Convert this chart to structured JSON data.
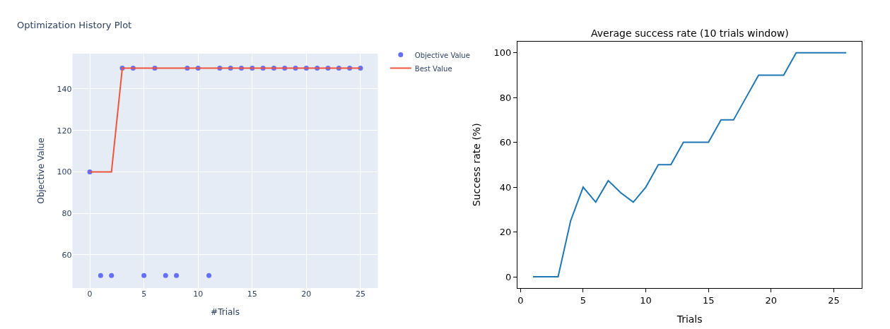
{
  "chart_data": [
    {
      "type": "scatter",
      "title": "Optimization History Plot",
      "xlabel": "#Trials",
      "ylabel": "Objective Value",
      "x": [
        0,
        1,
        2,
        3,
        4,
        5,
        6,
        7,
        8,
        9,
        10,
        11,
        12,
        13,
        14,
        15,
        16,
        17,
        18,
        19,
        20,
        21,
        22,
        23,
        24,
        25
      ],
      "series": [
        {
          "name": "Objective Value",
          "type": "scatter",
          "marker": "circle",
          "color": "#636efa",
          "values": [
            100,
            50,
            50,
            150,
            150,
            50,
            150,
            50,
            50,
            150,
            150,
            50,
            150,
            150,
            150,
            150,
            150,
            150,
            150,
            150,
            150,
            150,
            150,
            150,
            150,
            150
          ]
        },
        {
          "name": "Best Value",
          "type": "line",
          "marker": "none",
          "color": "#ef553b",
          "values": [
            100,
            100,
            100,
            150,
            150,
            150,
            150,
            150,
            150,
            150,
            150,
            150,
            150,
            150,
            150,
            150,
            150,
            150,
            150,
            150,
            150,
            150,
            150,
            150,
            150,
            150
          ]
        }
      ],
      "xlim": [
        -1.6,
        26.6
      ],
      "ylim": [
        44,
        157
      ],
      "xticks": [
        0,
        5,
        10,
        15,
        20,
        25
      ],
      "yticks": [
        60,
        80,
        100,
        120,
        140
      ],
      "grid": true,
      "legend": "right"
    },
    {
      "type": "line",
      "title": "Average success rate (10 trials window)",
      "xlabel": "Trials",
      "ylabel": "Success rate (%)",
      "x": [
        1,
        2,
        3,
        4,
        5,
        6,
        7,
        8,
        9,
        10,
        11,
        12,
        13,
        14,
        15,
        16,
        17,
        18,
        19,
        20,
        21,
        22,
        23,
        24,
        25,
        26
      ],
      "series": [
        {
          "color": "#1f77b4",
          "values": [
            0,
            0,
            0,
            25,
            40,
            33.3,
            42.9,
            37.5,
            33.3,
            40,
            50,
            50,
            60,
            60,
            60,
            70,
            70,
            80,
            90,
            90,
            90,
            100,
            100,
            100,
            100,
            100
          ]
        }
      ],
      "xlim": [
        -0.25,
        27.25
      ],
      "ylim": [
        -5,
        105
      ],
      "xticks": [
        0,
        5,
        10,
        15,
        20,
        25
      ],
      "yticks": [
        0,
        20,
        40,
        60,
        80,
        100
      ],
      "grid": false,
      "legend": false
    }
  ]
}
